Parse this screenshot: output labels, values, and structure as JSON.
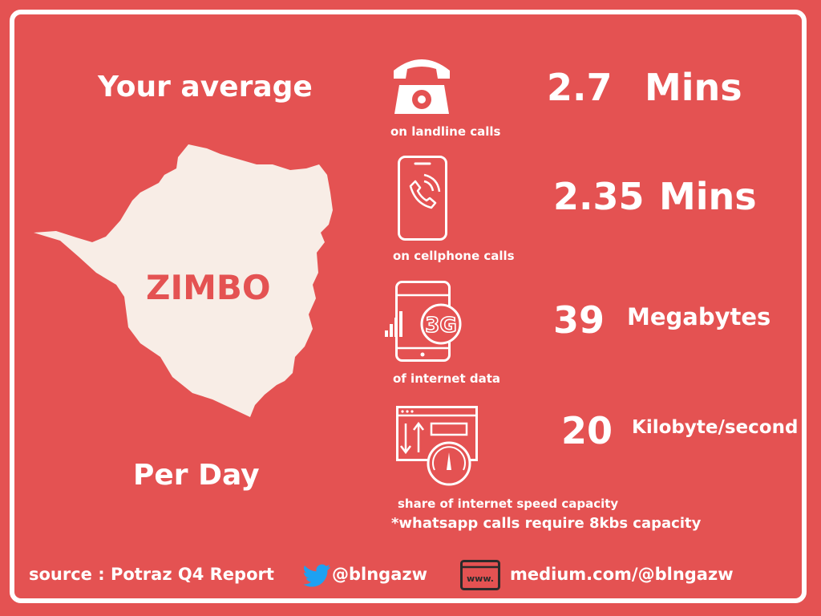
{
  "headline": "Your average",
  "per_day": "Per Day",
  "map_label": "ZIMBO",
  "stats": [
    {
      "value": "2.7",
      "unit": "Mins",
      "caption": "on landline calls",
      "icon": "landline-phone-icon"
    },
    {
      "value": "2.35",
      "unit": "Mins",
      "caption": "on cellphone calls",
      "icon": "cellphone-icon"
    },
    {
      "value": "39",
      "unit": "Megabytes",
      "caption": "of internet data",
      "icon": "3g-data-icon"
    },
    {
      "value": "20",
      "unit": "Kilobyte/second",
      "caption": "share of internet speed capacity",
      "icon": "speed-meter-icon"
    }
  ],
  "note": "*whatsapp calls require 8kbs capacity",
  "footer": {
    "source": "source : Potraz Q4 Report",
    "twitter": "@blngazw",
    "web_icon_text": "www.",
    "website": "medium.com/@blngazw"
  },
  "colors": {
    "background": "#e45252",
    "white": "#ffffff",
    "map": "#f8ede6",
    "twitter": "#1da1f2"
  }
}
